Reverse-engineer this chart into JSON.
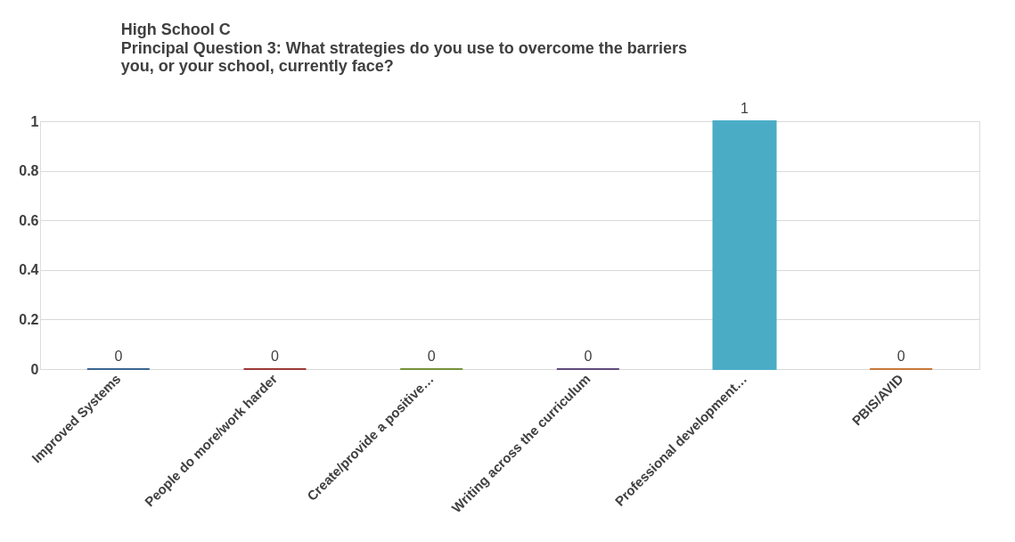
{
  "chart_data": {
    "type": "bar",
    "title": "High School C",
    "subtitle": "Principal Question 3: What strategies do you use to overcome the barriers you, or your school, currently face?",
    "categories": [
      "Improved Systems",
      "People do more/work harder",
      "Create/provide a positive…",
      "Writing across the curriculum",
      "Professional development…",
      "PBIS/AVID"
    ],
    "values": [
      0,
      0,
      0,
      0,
      1,
      0
    ],
    "colors": [
      "#3a6593",
      "#9b3a37",
      "#77923c",
      "#5f4a7b",
      "#4bacc6",
      "#c8783a"
    ],
    "ylim": [
      0,
      1
    ],
    "yticks": [
      0,
      0.2,
      0.4,
      0.6,
      0.8,
      1
    ],
    "grid": "y",
    "data_labels": true
  }
}
